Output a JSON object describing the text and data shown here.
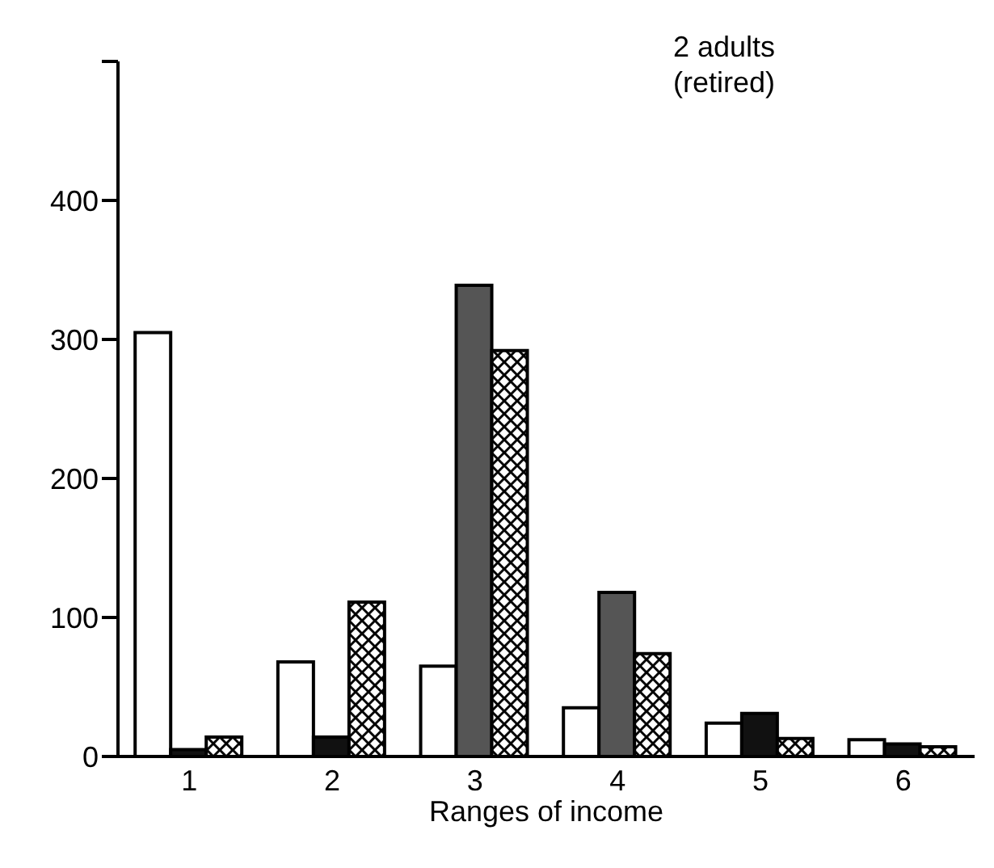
{
  "chart_data": {
    "type": "bar",
    "title": "2 adults\n(retired)",
    "xlabel": "Ranges of income",
    "categories": [
      "1",
      "2",
      "3",
      "4",
      "5",
      "6"
    ],
    "series": [
      {
        "color": "#ffffff",
        "values": [
          305,
          68,
          65,
          35,
          24,
          12
        ]
      },
      {
        "color": "#111111",
        "colors": [
          "#111111",
          "#111111",
          "#555555",
          "#555555",
          "#111111",
          "#111111"
        ],
        "values": [
          5,
          14,
          339,
          118,
          31,
          9
        ]
      },
      {
        "color": "#000000",
        "values": [
          14,
          111,
          292,
          74,
          13,
          7
        ]
      }
    ],
    "ylim": [
      0,
      500
    ],
    "yticks": [
      0,
      100,
      200,
      300,
      400,
      {
        "value": 500,
        "label": null
      }
    ],
    "grid": false,
    "legend": false
  }
}
